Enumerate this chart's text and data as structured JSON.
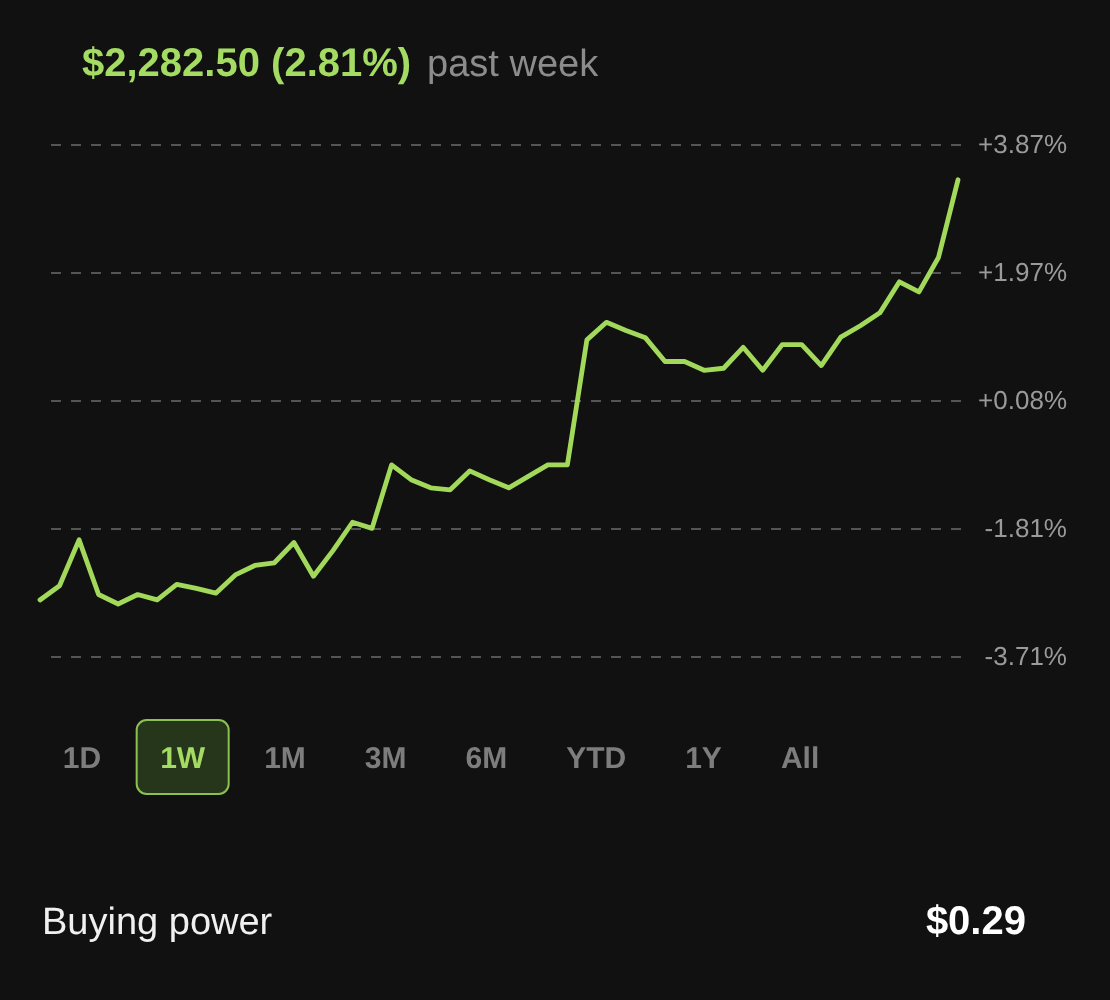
{
  "chart_data": {
    "type": "line",
    "title": "$2,282.50 (2.81%)",
    "subtitle": "past week",
    "categories": [
      null,
      null,
      null,
      null,
      null,
      null,
      null,
      null,
      null,
      null,
      null,
      null,
      null,
      null,
      null,
      null,
      null,
      null,
      null,
      null,
      null,
      null,
      null,
      null,
      null,
      null,
      null,
      null,
      null,
      null,
      null,
      null,
      null,
      null,
      null,
      null,
      null,
      null,
      null,
      null,
      null,
      null,
      null,
      null,
      null,
      null,
      null,
      null
    ],
    "values": [
      -2.88,
      -2.67,
      -1.99,
      -2.8,
      -2.94,
      -2.8,
      -2.88,
      -2.65,
      -2.71,
      -2.78,
      -2.51,
      -2.37,
      -2.33,
      -2.03,
      -2.53,
      -2.15,
      -1.73,
      -1.82,
      -0.88,
      -1.1,
      -1.22,
      -1.25,
      -0.97,
      -1.1,
      -1.22,
      -1.05,
      -0.88,
      -0.88,
      0.97,
      1.23,
      1.11,
      1.0,
      0.65,
      0.65,
      0.52,
      0.55,
      0.86,
      0.52,
      0.9,
      0.9,
      0.59,
      1.01,
      1.18,
      1.37,
      1.83,
      1.68,
      2.19,
      3.34
    ],
    "color": "#a2d95b",
    "ylim": [
      -3.71,
      3.87
    ],
    "yticks": [
      {
        "value": -3.71,
        "label": "-3.71%"
      },
      {
        "value": -1.81,
        "label": "-1.81%"
      },
      {
        "value": 0.08,
        "label": "+0.08%"
      },
      {
        "value": 1.97,
        "label": "+1.97%"
      },
      {
        "value": 3.87,
        "label": "+3.87%"
      }
    ],
    "grid": "y",
    "tick_labels": "y",
    "line_style": "solid",
    "annotations": [
      "1D",
      "1W",
      "1M",
      "3M",
      "6M",
      "YTD",
      "1Y",
      "All",
      "Buying power",
      "$0.29"
    ]
  }
}
